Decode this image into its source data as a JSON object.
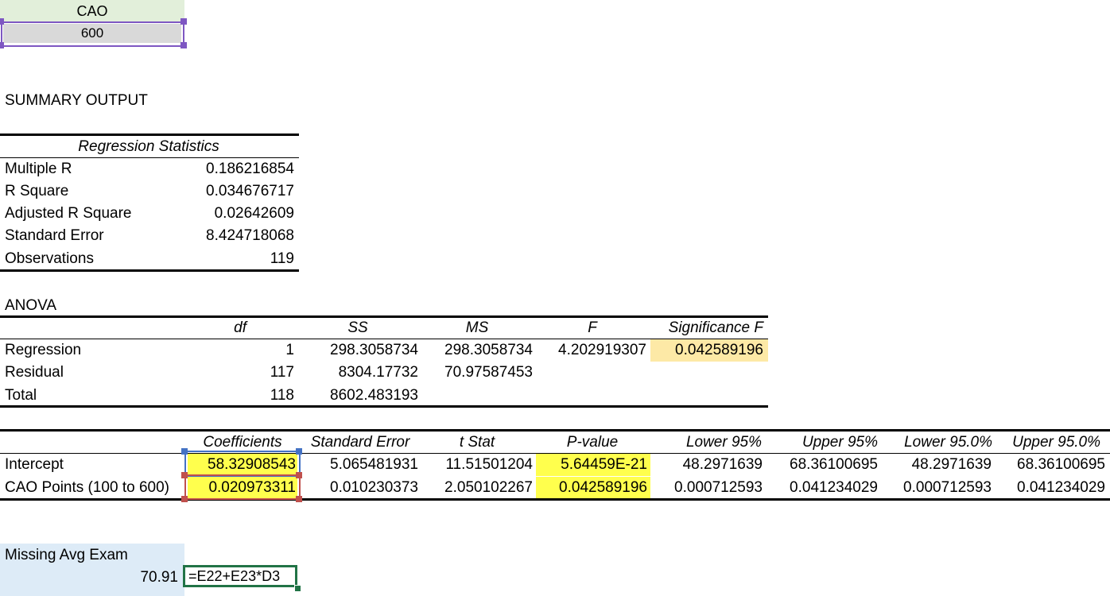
{
  "cao_box": {
    "label": "CAO",
    "value": "600"
  },
  "summary_title": "SUMMARY OUTPUT",
  "regression_stats": {
    "header": "Regression Statistics",
    "rows": [
      {
        "label": "Multiple R",
        "value": "0.186216854"
      },
      {
        "label": "R Square",
        "value": "0.034676717"
      },
      {
        "label": "Adjusted R Square",
        "value": "0.02642609"
      },
      {
        "label": "Standard Error",
        "value": "8.424718068"
      },
      {
        "label": "Observations",
        "value": "119"
      }
    ]
  },
  "anova": {
    "title": "ANOVA",
    "headers": [
      "df",
      "SS",
      "MS",
      "F",
      "Significance F"
    ],
    "rows": [
      {
        "label": "Regression",
        "df": "1",
        "ss": "298.3058734",
        "ms": "298.3058734",
        "f": "4.202919307",
        "sigf": "0.042589196"
      },
      {
        "label": "Residual",
        "df": "117",
        "ss": "8304.17732",
        "ms": "70.97587453",
        "f": "",
        "sigf": ""
      },
      {
        "label": "Total",
        "df": "118",
        "ss": "8602.483193",
        "ms": "",
        "f": "",
        "sigf": ""
      }
    ]
  },
  "coef_table": {
    "headers": [
      "Coefficients",
      "Standard Error",
      "t Stat",
      "P-value",
      "Lower 95%",
      "Upper 95%",
      "Lower 95.0%",
      "Upper 95.0%"
    ],
    "rows": [
      {
        "label": "Intercept",
        "coef": "58.32908543",
        "se": "5.065481931",
        "t": "11.51501204",
        "p": "5.64459E-21",
        "l95": "48.2971639",
        "u95": "68.36100695",
        "l950": "48.2971639",
        "u950": "68.36100695"
      },
      {
        "label": "CAO Points (100 to 600)",
        "coef": "0.020973311",
        "se": "0.010230373",
        "t": "2.050102267",
        "p": "0.042589196",
        "l95": "0.000712593",
        "u95": "0.041234029",
        "l950": "0.000712593",
        "u950": "0.041234029"
      }
    ]
  },
  "missing": {
    "label": "Missing Avg Exam",
    "value": "70.91",
    "formula": "=E22+E23*D3"
  },
  "colors": {
    "cao_header_bg": "#e2efda",
    "cao_value_bg": "#d9d9d9",
    "selection_purple": "#7e57c2",
    "highlight_yellow": "#ffff4d",
    "highlight_orange": "#fde9a6",
    "ref_blue": "#4472c4",
    "ref_red": "#c0504d",
    "missing_bg": "#ddebf7",
    "formula_border": "#217346"
  }
}
